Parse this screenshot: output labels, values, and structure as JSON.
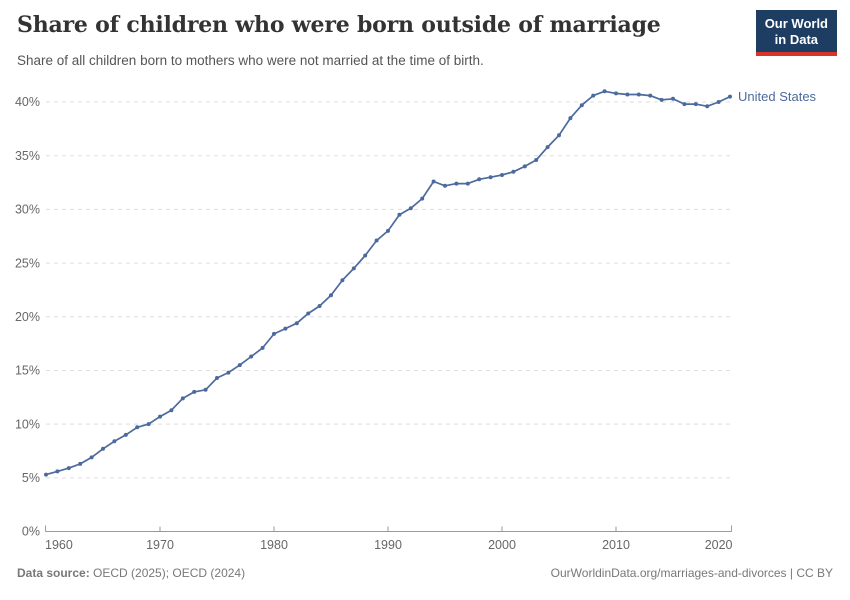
{
  "header": {
    "title": "Share of children who were born outside of marriage",
    "subtitle": "Share of all children born to mothers who were not married at the time of birth."
  },
  "logo": {
    "line1": "Our World",
    "line2": "in Data",
    "background_color": "#1d3d63",
    "accent_color": "#d8352a"
  },
  "footer": {
    "data_source_label": "Data source:",
    "data_source_value": " OECD (2025); OECD (2024)",
    "credit": "OurWorldinData.org/marriages-and-divorces | CC BY"
  },
  "colors": {
    "line": "#4C6A9C",
    "grid": "#dedede",
    "axis": "#9a9a9a",
    "tick_label": "#676767"
  },
  "chart_data": {
    "type": "line",
    "title": "Share of children who were born outside of marriage",
    "xlabel": "",
    "ylabel": "",
    "xlim": [
      1960,
      2020
    ],
    "ylim": [
      0,
      40
    ],
    "x_ticks": [
      1960,
      1970,
      1980,
      1990,
      2000,
      2010,
      2020
    ],
    "y_ticks": [
      0,
      5,
      10,
      15,
      20,
      25,
      30,
      35,
      40
    ],
    "y_tick_suffix": "%",
    "grid": "horizontal dashed",
    "legend": "label at end of line",
    "series": [
      {
        "name": "United States",
        "color": "#4C6A9C",
        "x": [
          1960,
          1961,
          1962,
          1963,
          1964,
          1965,
          1966,
          1967,
          1968,
          1969,
          1970,
          1971,
          1972,
          1973,
          1974,
          1975,
          1976,
          1977,
          1978,
          1979,
          1980,
          1981,
          1982,
          1983,
          1984,
          1985,
          1986,
          1987,
          1988,
          1989,
          1990,
          1991,
          1992,
          1993,
          1994,
          1995,
          1996,
          1997,
          1998,
          1999,
          2000,
          2001,
          2002,
          2003,
          2004,
          2005,
          2006,
          2007,
          2008,
          2009,
          2010,
          2011,
          2012,
          2013,
          2014,
          2015,
          2016,
          2017,
          2018,
          2019,
          2020
        ],
        "values": [
          5.3,
          5.6,
          5.9,
          6.3,
          6.9,
          7.7,
          8.4,
          9.0,
          9.7,
          10.0,
          10.7,
          11.3,
          12.4,
          13.0,
          13.2,
          14.3,
          14.8,
          15.5,
          16.3,
          17.1,
          18.4,
          18.9,
          19.4,
          20.3,
          21.0,
          22.0,
          23.4,
          24.5,
          25.7,
          27.1,
          28.0,
          29.5,
          30.1,
          31.0,
          32.6,
          32.2,
          32.4,
          32.4,
          32.8,
          33.0,
          33.2,
          33.5,
          34.0,
          34.6,
          35.8,
          36.9,
          38.5,
          39.7,
          40.6,
          41.0,
          40.8,
          40.7,
          40.7,
          40.6,
          40.2,
          40.3,
          39.8,
          39.8,
          39.6,
          40.0,
          40.5
        ]
      }
    ]
  }
}
